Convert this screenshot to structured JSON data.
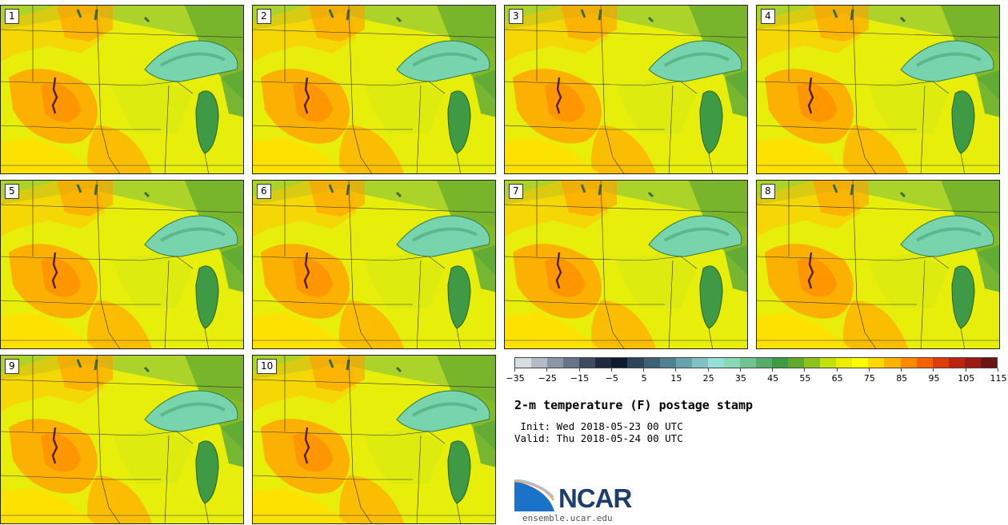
{
  "panels": [
    {
      "label": "1"
    },
    {
      "label": "2"
    },
    {
      "label": "3"
    },
    {
      "label": "4"
    },
    {
      "label": "5"
    },
    {
      "label": "6"
    },
    {
      "label": "7"
    },
    {
      "label": "8"
    },
    {
      "label": "9"
    },
    {
      "label": "10"
    }
  ],
  "colorbar": {
    "colors": [
      "#d8dde3",
      "#b3bcc6",
      "#8c97a6",
      "#67738a",
      "#3f4a63",
      "#1f2a40",
      "#0e1a30",
      "#2b4459",
      "#3d6278",
      "#4f8194",
      "#67a3ad",
      "#80c2c4",
      "#93e0d7",
      "#86dbb6",
      "#6fc490",
      "#56ad6a",
      "#3f9a45",
      "#5faa2a",
      "#8ec31b",
      "#c4e00c",
      "#eded00",
      "#fffd00",
      "#ffd800",
      "#ffb300",
      "#ff8a00",
      "#f56200",
      "#dd3d0a",
      "#bd2410",
      "#9b1a12",
      "#6e1410"
    ],
    "tick_labels": [
      "−35",
      "−25",
      "−15",
      "−5",
      "5",
      "15",
      "25",
      "35",
      "45",
      "55",
      "65",
      "75",
      "85",
      "95",
      "105",
      "115"
    ]
  },
  "title": "2-m temperature (F) postage stamp",
  "init": " Init: Wed 2018-05-23 00 UTC",
  "valid": "Valid: Thu 2018-05-24 00 UTC",
  "logo": {
    "name": "NCAR"
  },
  "url": "ensemble.ucar.edu"
}
